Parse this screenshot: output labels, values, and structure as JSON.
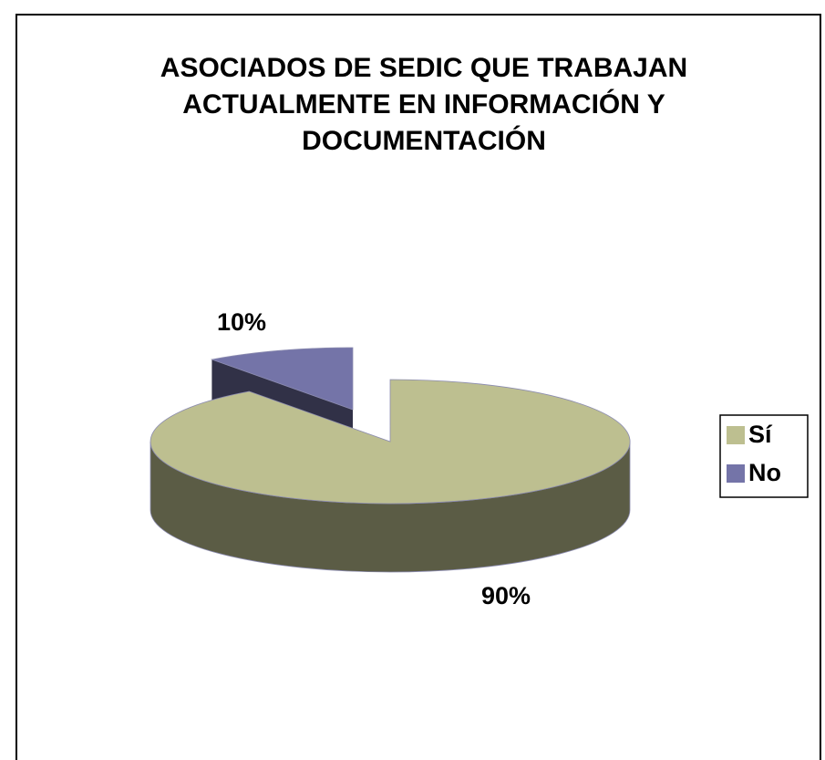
{
  "chart_data": {
    "type": "pie",
    "title": "ASOCIADOS DE SEDIC QUE TRABAJAN ACTUALMENTE EN INFORMACIÓN Y DOCUMENTACIÓN",
    "categories": [
      "Sí",
      "No"
    ],
    "values": [
      90,
      10
    ],
    "value_labels": [
      "90%",
      "10%"
    ],
    "colors": [
      "#bdbf90",
      "#7474a8"
    ],
    "legend": "right"
  }
}
